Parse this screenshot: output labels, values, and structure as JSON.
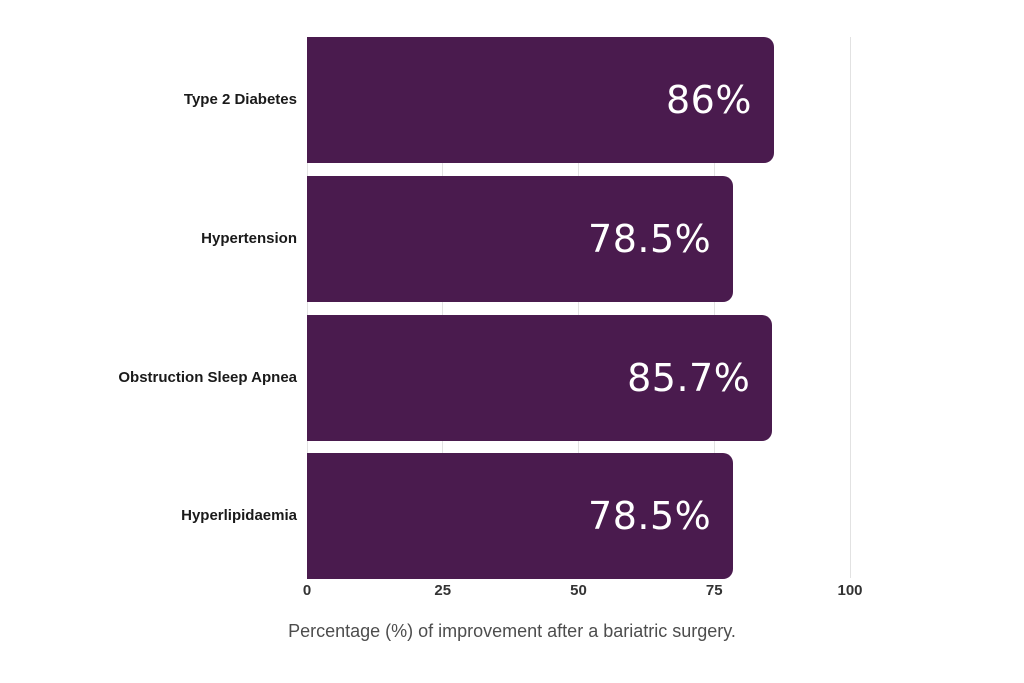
{
  "chart_data": {
    "type": "bar",
    "orientation": "horizontal",
    "categories": [
      "Type 2 Diabetes",
      "Hypertension",
      "Obstruction Sleep Apnea",
      "Hyperlipidaemia"
    ],
    "values": [
      86,
      78.5,
      85.7,
      78.5
    ],
    "value_labels": [
      "86%",
      "78.5%",
      "85.7%",
      "78.5%"
    ],
    "xlabel": "Percentage (%) of improvement after a bariatric surgery.",
    "xticks": [
      0,
      25,
      50,
      75,
      100
    ],
    "xtick_labels": [
      "0",
      "25",
      "50",
      "75",
      "100"
    ],
    "xlim": [
      0,
      100
    ],
    "grid": true,
    "legend": false,
    "title": "",
    "colors": {
      "bar": "#4a1b4e",
      "value_text": "#ffffff",
      "gridline": "#e2e2e2",
      "category_text": "#1a1a1a",
      "tick_text": "#333333",
      "axis_title_text": "#4d4d4d",
      "background": "#ffffff"
    }
  }
}
